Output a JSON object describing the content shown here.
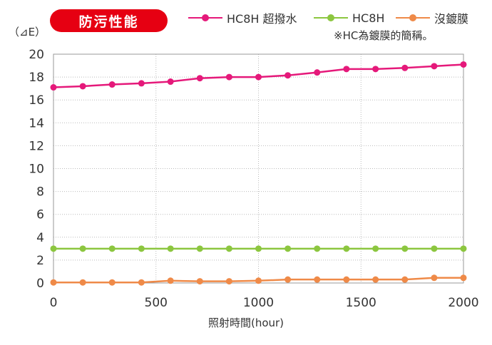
{
  "badge": {
    "label": "防污性能"
  },
  "unit_label": "（⊿E）",
  "note": "※HC為鍍膜的簡稱。",
  "colors": {
    "pink": "#e5197a",
    "green": "#8cc63f",
    "orange": "#ef8a48",
    "badge": "#e60012"
  },
  "chart_data": {
    "type": "line",
    "title": "防污性能",
    "xlabel": "照射時間(hour)",
    "ylabel": "（⊿E）",
    "xlim": [
      0,
      2000
    ],
    "ylim": [
      0,
      20
    ],
    "x_ticks": [
      0,
      500,
      1000,
      1500,
      2000
    ],
    "y_ticks": [
      0,
      2,
      4,
      6,
      8,
      10,
      12,
      14,
      16,
      18,
      20
    ],
    "grid": true,
    "legend": "top",
    "x": [
      0,
      143,
      286,
      429,
      571,
      714,
      857,
      1000,
      1143,
      1286,
      1429,
      1571,
      1714,
      1857,
      2000
    ],
    "series": [
      {
        "name": "HC8H 超撥水",
        "color": "#e5197a",
        "values": [
          17.1,
          17.2,
          17.35,
          17.45,
          17.6,
          17.9,
          18.0,
          18.0,
          18.15,
          18.4,
          18.7,
          18.7,
          18.8,
          18.95,
          19.1
        ]
      },
      {
        "name": "HC8H",
        "color": "#8cc63f",
        "values": [
          3.0,
          3.0,
          3.0,
          3.0,
          3.0,
          3.0,
          3.0,
          3.0,
          3.0,
          3.0,
          3.0,
          3.0,
          3.0,
          3.0,
          3.0
        ]
      },
      {
        "name": "沒鍍膜",
        "color": "#ef8a48",
        "values": [
          0.05,
          0.05,
          0.05,
          0.05,
          0.2,
          0.15,
          0.15,
          0.2,
          0.3,
          0.3,
          0.3,
          0.3,
          0.3,
          0.45,
          0.45
        ]
      }
    ]
  }
}
